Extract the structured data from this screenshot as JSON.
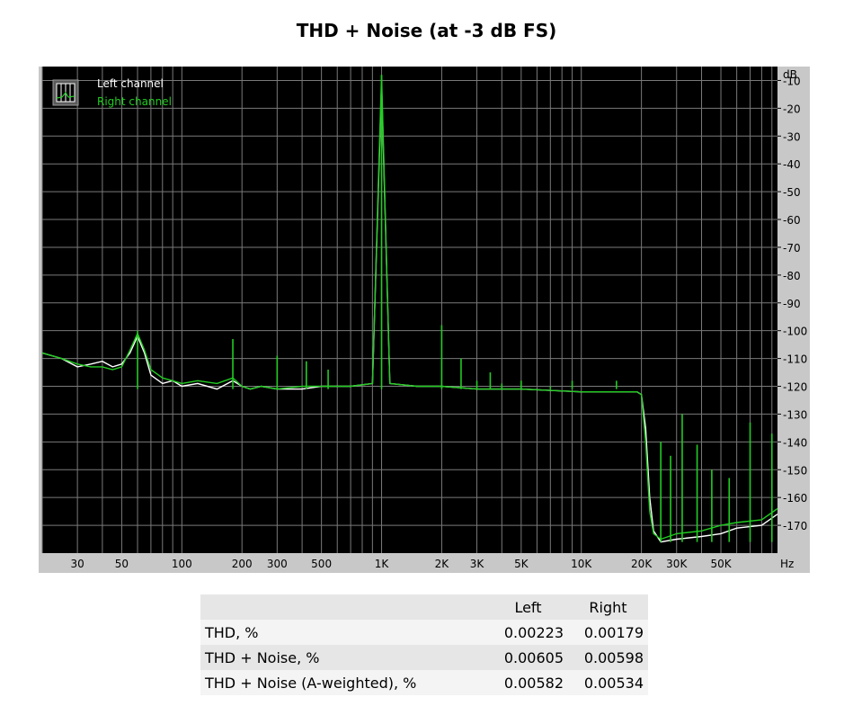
{
  "chart_data": {
    "type": "line",
    "title": "THD + Noise (at -3 dB FS)",
    "xlabel": "Hz",
    "ylabel": "dB",
    "x_scale": "log",
    "xlim": [
      20,
      96000
    ],
    "ylim": [
      -180,
      -5
    ],
    "grid": true,
    "legend_position": "top-left",
    "x_tick_labels": [
      "30",
      "50",
      "100",
      "200",
      "300",
      "500",
      "1K",
      "2K",
      "3K",
      "5K",
      "10K",
      "20K",
      "30K",
      "50K"
    ],
    "x_tick_values": [
      30,
      50,
      100,
      200,
      300,
      500,
      1000,
      2000,
      3000,
      5000,
      10000,
      20000,
      30000,
      50000
    ],
    "y_tick_values": [
      -10,
      -20,
      -30,
      -40,
      -50,
      -60,
      -70,
      -80,
      -90,
      -100,
      -110,
      -120,
      -130,
      -140,
      -150,
      -160,
      -170
    ],
    "y_tick_labels": [
      "-10",
      "-20",
      "-30",
      "-40",
      "-50",
      "-60",
      "-70",
      "-80",
      "-90",
      "-100",
      "-110",
      "-120",
      "-130",
      "-140",
      "-150",
      "-160",
      "-170"
    ],
    "series": [
      {
        "name": "Left channel",
        "color": "#ffffff",
        "x": [
          20,
          25,
          30,
          35,
          40,
          45,
          50,
          55,
          60,
          65,
          70,
          80,
          90,
          100,
          120,
          150,
          180,
          200,
          220,
          250,
          300,
          400,
          500,
          700,
          900,
          1000,
          1100,
          1500,
          2000,
          3000,
          5000,
          10000,
          15000,
          19000,
          20000,
          21000,
          22000,
          23000,
          25000,
          30000,
          40000,
          50000,
          60000,
          80000,
          96000
        ],
        "y": [
          -108,
          -110,
          -113,
          -112,
          -111,
          -113,
          -112,
          -108,
          -102,
          -108,
          -116,
          -119,
          -118,
          -120,
          -119,
          -121,
          -118,
          -120,
          -121,
          -120,
          -121,
          -121,
          -120,
          -120,
          -119,
          -11,
          -119,
          -120,
          -120,
          -121,
          -121,
          -122,
          -122,
          -122,
          -123,
          -135,
          -160,
          -172,
          -176,
          -175,
          -174,
          -173,
          -171,
          -170,
          -166
        ]
      },
      {
        "name": "Right channel",
        "color": "#22cc22",
        "x": [
          20,
          25,
          30,
          35,
          40,
          45,
          50,
          55,
          60,
          65,
          70,
          80,
          90,
          100,
          120,
          150,
          180,
          200,
          220,
          250,
          300,
          400,
          500,
          700,
          900,
          1000,
          1100,
          1500,
          2000,
          3000,
          5000,
          10000,
          15000,
          19000,
          20000,
          21000,
          22000,
          23000,
          25000,
          30000,
          40000,
          50000,
          60000,
          80000,
          96000
        ],
        "y": [
          -108,
          -110,
          -112,
          -113,
          -113,
          -114,
          -113,
          -107,
          -101,
          -107,
          -114,
          -117,
          -118,
          -119,
          -118,
          -119,
          -117,
          -120,
          -121,
          -120,
          -121,
          -120,
          -120,
          -120,
          -119,
          -8,
          -119,
          -120,
          -120,
          -121,
          -121,
          -122,
          -122,
          -122,
          -123,
          -140,
          -165,
          -173,
          -175,
          -173,
          -172,
          -170,
          -169,
          -168,
          -164
        ]
      }
    ],
    "spikes": {
      "x": [
        60,
        180,
        300,
        420,
        540,
        1000,
        2000,
        2500,
        3000,
        3500,
        4000,
        5000,
        7000,
        9000,
        15000,
        25000,
        28000,
        32000,
        38000,
        45000,
        55000,
        70000,
        90000
      ],
      "y": [
        -100,
        -103,
        -109,
        -111,
        -114,
        -8,
        -98,
        -110,
        -118,
        -115,
        -119,
        -118,
        -120,
        -118,
        -118,
        -140,
        -145,
        -130,
        -141,
        -150,
        -153,
        -133,
        -137
      ]
    },
    "legend": [
      {
        "label": "Left channel",
        "color": "#ffffff"
      },
      {
        "label": "Right channel",
        "color": "#22cc22"
      }
    ]
  },
  "table": {
    "headers": [
      "",
      "Left",
      "Right"
    ],
    "rows": [
      {
        "label": "THD, %",
        "left": "0.00223",
        "right": "0.00179"
      },
      {
        "label": "THD + Noise, %",
        "left": "0.00605",
        "right": "0.00598"
      },
      {
        "label": "THD + Noise (A-weighted), %",
        "left": "0.00582",
        "right": "0.00534"
      }
    ]
  },
  "colors": {
    "plot_background": "#000000",
    "frame": "#c8c8c8",
    "grid": "#7a7a7a",
    "left_channel": "#ffffff",
    "right_channel": "#22cc22"
  }
}
